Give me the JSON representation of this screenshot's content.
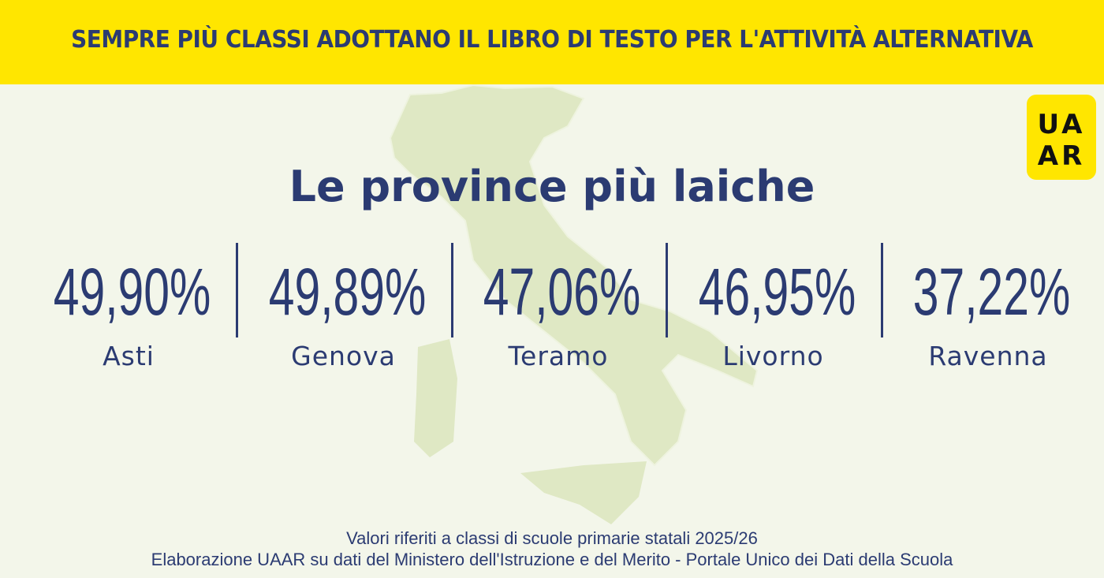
{
  "header": {
    "title": "SEMPRE PIÙ CLASSI ADOTTANO IL LIBRO DI TESTO PER L'ATTIVITÀ ALTERNATIVA"
  },
  "logo": {
    "line1": "UA",
    "line2": "AR"
  },
  "subtitle": "Le province più laiche",
  "stats": [
    {
      "value": "49,90%",
      "province": "Asti"
    },
    {
      "value": "49,89%",
      "province": "Genova"
    },
    {
      "value": "47,06%",
      "province": "Teramo"
    },
    {
      "value": "46,95%",
      "province": "Livorno"
    },
    {
      "value": "37,22%",
      "province": "Ravenna"
    }
  ],
  "footer": {
    "line1": "Valori riferiti a classi di scuole primarie statali 2025/26",
    "line2": "Elaborazione UAAR su dati del Ministero dell'Istruzione e del Merito - Portale Unico dei Dati della Scuola"
  }
}
